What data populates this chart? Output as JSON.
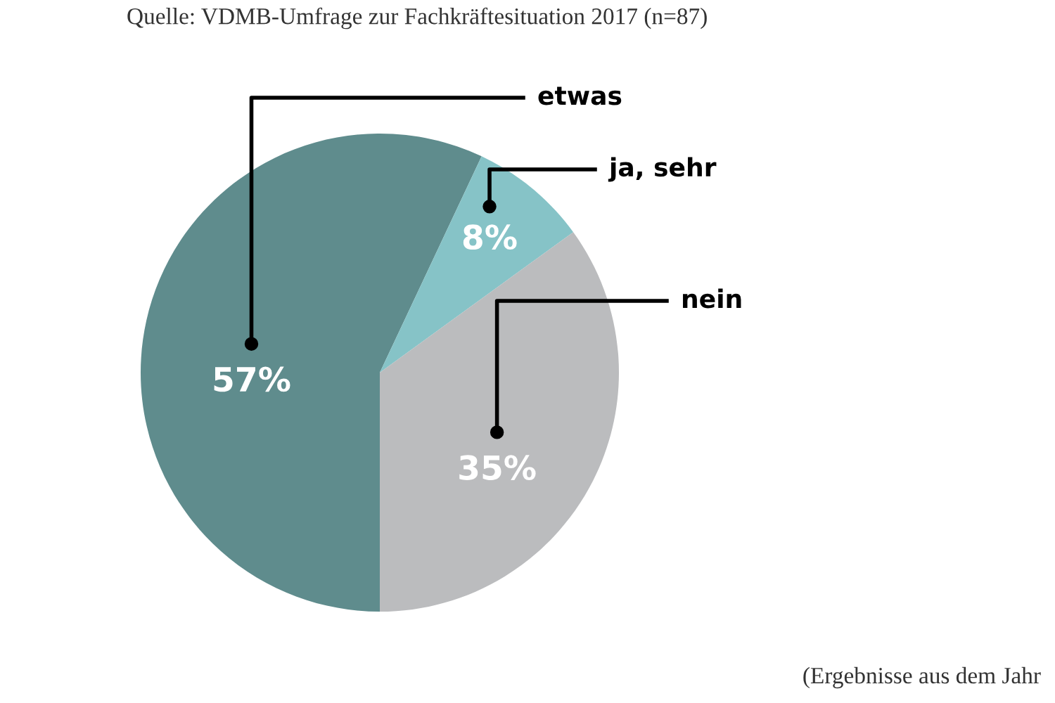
{
  "chart_data": {
    "type": "pie",
    "categories": [
      "etwas",
      "ja, sehr",
      "nein"
    ],
    "values": [
      57,
      8,
      35
    ],
    "colors": [
      "#5f8c8d",
      "#86c3c7",
      "#bbbcbe"
    ],
    "value_labels": [
      "57%",
      "8%",
      "35%"
    ],
    "annotations": [
      "Quelle: VDMB-Umfrage zur Fachkräftesituation 2017 (n=87)",
      "(Ergebnisse aus dem Jahr"
    ],
    "legend": false
  }
}
